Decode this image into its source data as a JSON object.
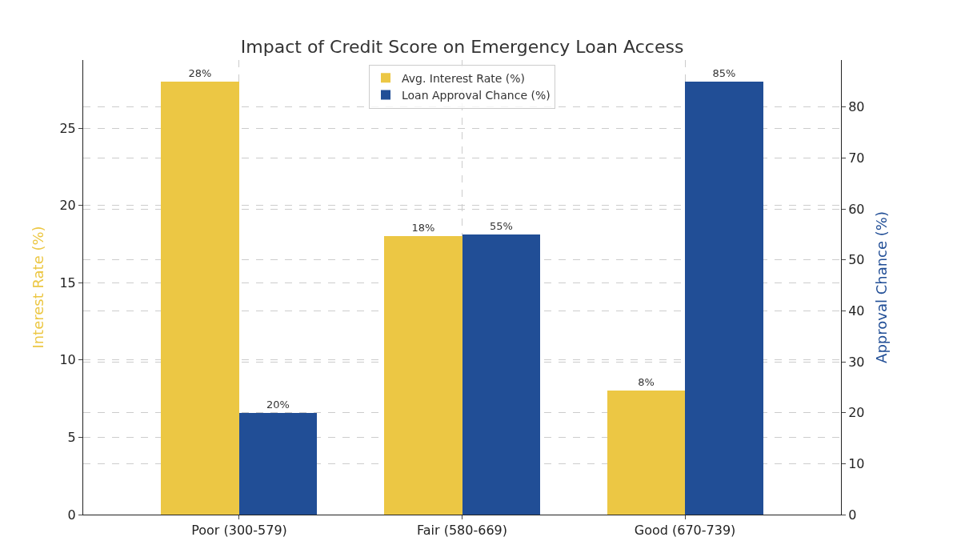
{
  "chart_data": {
    "type": "bar",
    "title": "Impact of Credit Score on Emergency Loan Access",
    "categories": [
      "Poor (300-579)",
      "Fair (580-669)",
      "Good (670-739)"
    ],
    "ylabel": "Interest Rate (%)",
    "y2label": "Approval Chance (%)",
    "series": [
      {
        "name": "Avg. Interest Rate (%)",
        "color": "#ecc744",
        "values": [
          28,
          18,
          8
        ],
        "value_labels": [
          "28%",
          "18%",
          "8%"
        ]
      },
      {
        "name": "Loan Approval Chance (%)",
        "color": "#214e96",
        "values": [
          20,
          55,
          85
        ],
        "value_labels": [
          "20%",
          "55%",
          "85%"
        ],
        "axis": "y2"
      }
    ],
    "ylim": [
      0,
      29.4
    ],
    "yticks": [
      0,
      5,
      10,
      15,
      20,
      25
    ],
    "y2lim": [
      0,
      89.25
    ],
    "y2ticks": [
      0,
      10,
      20,
      30,
      40,
      50,
      60,
      70,
      80
    ],
    "grid": true,
    "legend": "top"
  }
}
